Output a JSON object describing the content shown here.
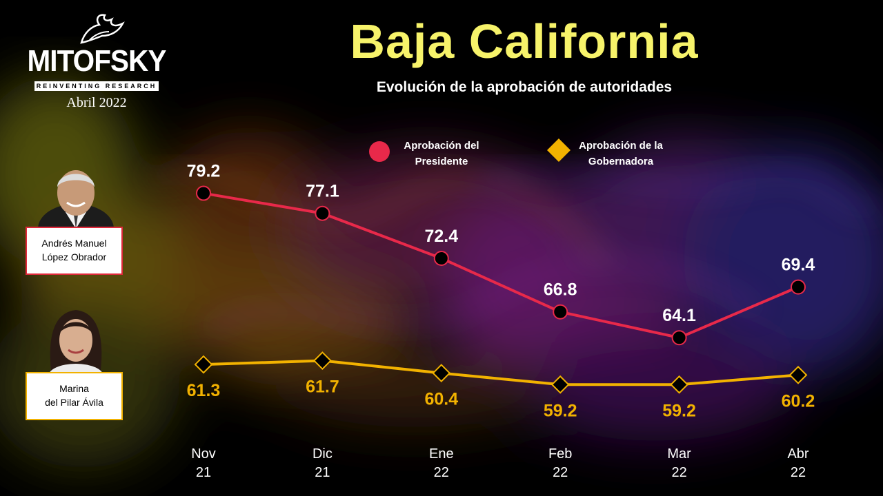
{
  "header": {
    "logo_name": "MITOFSKY",
    "logo_tagline": "REINVENTING RESEARCH",
    "date": "Abril 2022",
    "title": "Baja California",
    "subtitle": "Evolución de la aprobación de autoridades"
  },
  "people": {
    "president": {
      "name_line1": "Andrés Manuel",
      "name_line2": "López Obrador"
    },
    "governor": {
      "name_line1": "Marina",
      "name_line2": "del Pilar Ávila"
    }
  },
  "legend": {
    "president_line1": "Aprobación del",
    "president_line2": "Presidente",
    "governor_line1": "Aprobación de la",
    "governor_line2": "Gobernadora"
  },
  "colors": {
    "president": "#e8294a",
    "governor": "#f2b200",
    "title": "#f7f36a"
  },
  "chart_data": {
    "type": "line",
    "title": "Baja California",
    "subtitle": "Evolución de la aprobación de autoridades",
    "categories": [
      {
        "month": "Nov",
        "year": "21"
      },
      {
        "month": "Dic",
        "year": "21"
      },
      {
        "month": "Ene",
        "year": "22"
      },
      {
        "month": "Feb",
        "year": "22"
      },
      {
        "month": "Mar",
        "year": "22"
      },
      {
        "month": "Abr",
        "year": "22"
      }
    ],
    "series": [
      {
        "name": "Aprobación del Presidente",
        "marker": "circle",
        "values": [
          79.2,
          77.1,
          72.4,
          66.8,
          64.1,
          69.4
        ],
        "labels": [
          "79.2",
          "77.1",
          "72.4",
          "66.8",
          "64.1",
          "69.4"
        ]
      },
      {
        "name": "Aprobación de la Gobernadora",
        "marker": "diamond",
        "values": [
          61.3,
          61.7,
          60.4,
          59.2,
          59.2,
          60.2
        ],
        "labels": [
          "61.3",
          "61.7",
          "60.4",
          "59.2",
          "59.2",
          "60.2"
        ]
      }
    ],
    "ylim": [
      50,
      85
    ],
    "grid": false,
    "legend": "top"
  }
}
